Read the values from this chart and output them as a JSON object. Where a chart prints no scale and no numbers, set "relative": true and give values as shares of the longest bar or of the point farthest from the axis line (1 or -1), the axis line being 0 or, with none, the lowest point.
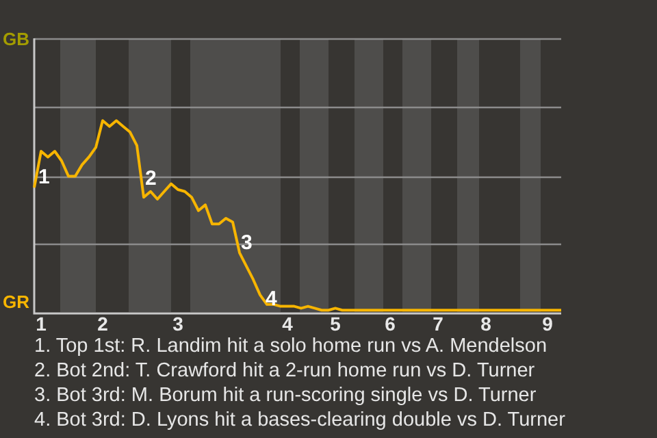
{
  "chart_data": {
    "type": "line",
    "relative": true,
    "categories": [
      null,
      "1",
      null,
      null,
      null,
      null,
      null,
      null,
      null,
      null,
      "2",
      null,
      null,
      null,
      null,
      null,
      null,
      null,
      null,
      null,
      null,
      "3",
      null,
      null,
      null,
      null,
      null,
      null,
      null,
      null,
      null,
      null,
      null,
      null,
      null,
      null,
      null,
      "4",
      null,
      null,
      null,
      null,
      null,
      null,
      "5",
      null,
      null,
      null,
      null,
      null,
      null,
      null,
      "6",
      null,
      null,
      null,
      null,
      null,
      null,
      "7",
      null,
      null,
      null,
      null,
      null,
      null,
      "8",
      null,
      null,
      null,
      null,
      null,
      null,
      null,
      null,
      "9",
      null,
      null
    ],
    "ref_lines": [
      {
        "axis": "y",
        "value": 0.36,
        "color": "#8c8c8c"
      },
      {
        "axis": "y",
        "value": 0.71,
        "color": "#8c8c8c"
      },
      {
        "axis": "y",
        "value": 1.07,
        "color": "#8c8c8c"
      },
      {
        "axis": "y",
        "value": 1.43,
        "color": "#8c8c8c"
      }
    ],
    "marker": "none",
    "line_style": "solid",
    "legend": false,
    "series": [
      {
        "color": "#f7b500",
        "values": [
          0.65,
          0.84,
          0.81,
          0.84,
          0.79,
          0.71,
          0.71,
          0.77,
          0.81,
          0.86,
          1,
          0.97,
          1,
          0.97,
          0.94,
          0.87,
          0.6,
          0.63,
          0.59,
          0.63,
          0.67,
          0.64,
          0.63,
          0.6,
          0.53,
          0.56,
          0.46,
          0.46,
          0.49,
          0.47,
          0.31,
          0.24,
          0.17,
          0.09,
          0.04,
          0.04,
          0.03,
          0.03,
          0.03,
          0.02,
          0.03,
          0.02,
          0.01,
          0.01,
          0.02,
          0.01,
          0.01,
          0.01,
          0.01,
          0.01,
          0.01,
          0.01,
          0.01,
          0.01,
          0.01,
          0.01,
          0.01,
          0.01,
          0.01,
          0.01,
          0.01,
          0.01,
          0.01,
          0.01,
          0.01,
          0.01,
          0.01,
          0.01,
          0.01,
          0.01,
          0.01,
          0.01,
          0.01,
          0.01,
          0.01,
          0.01,
          0.01,
          0.01
        ]
      }
    ],
    "annotations": [
      "GB",
      "GR",
      "1",
      "2",
      "3",
      "4",
      "1. Top 1st: R. Landim hit a solo home run vs A. Mendelson",
      "2. Bot 2nd: T. Crawford hit a 2-run home run vs D. Turner",
      "3. Bot 3rd: M. Borum hit a run-scoring single vs D. Turner",
      "4. Bot 3rd: D. Lyons hit a bases-clearing double vs D. Turner"
    ]
  }
}
